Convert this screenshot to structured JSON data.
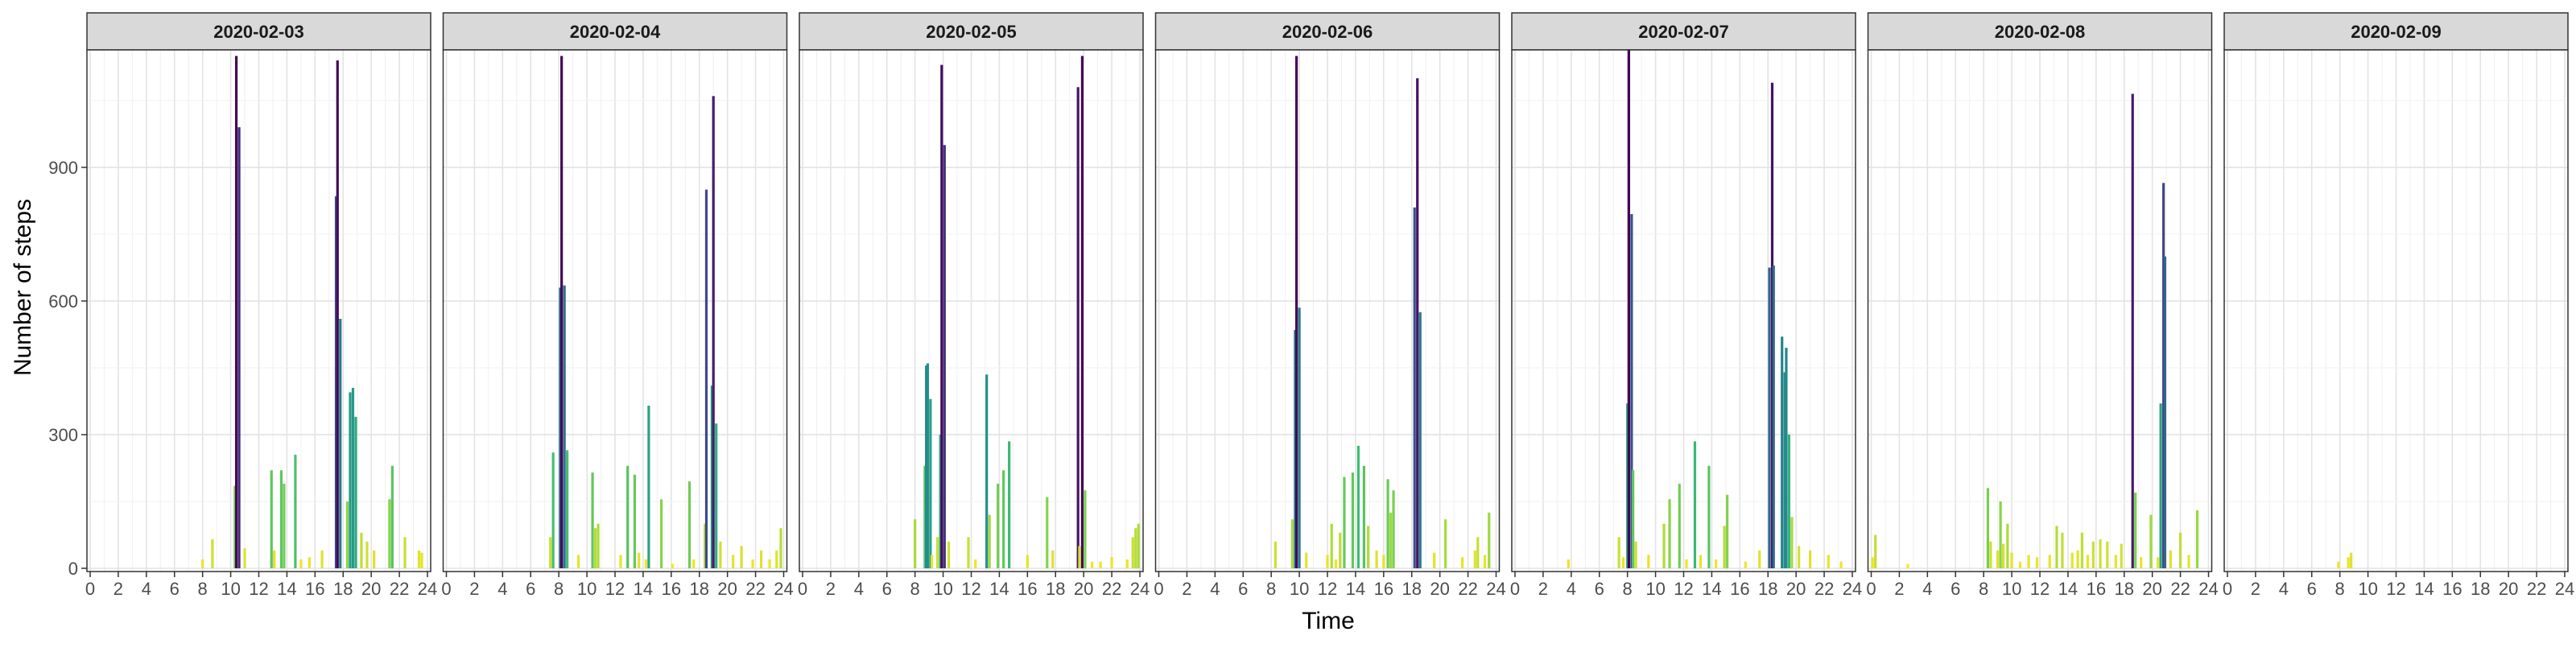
{
  "chart_data": {
    "type": "bar",
    "xlabel": "Time",
    "ylabel": "Number of steps",
    "xlim": [
      0,
      24
    ],
    "ylim": [
      0,
      1160
    ],
    "x_ticks": [
      "0",
      "2",
      "4",
      "6",
      "8",
      "10",
      "12",
      "14",
      "16",
      "18",
      "20",
      "22",
      "24"
    ],
    "y_ticks": [
      0,
      300,
      600,
      900
    ],
    "grid": true,
    "color_scale": "viridis (steps: low = yellow, high = dark purple)",
    "facets": [
      {
        "label": "2020-02-03",
        "bars": [
          {
            "x": 8.0,
            "y": 20
          },
          {
            "x": 8.7,
            "y": 65
          },
          {
            "x": 10.3,
            "y": 185
          },
          {
            "x": 10.4,
            "y": 1150
          },
          {
            "x": 10.6,
            "y": 990
          },
          {
            "x": 11.0,
            "y": 45
          },
          {
            "x": 12.9,
            "y": 220
          },
          {
            "x": 13.1,
            "y": 40
          },
          {
            "x": 13.6,
            "y": 220
          },
          {
            "x": 13.8,
            "y": 190
          },
          {
            "x": 14.6,
            "y": 255
          },
          {
            "x": 15.0,
            "y": 20
          },
          {
            "x": 15.6,
            "y": 25
          },
          {
            "x": 16.5,
            "y": 40
          },
          {
            "x": 17.5,
            "y": 835
          },
          {
            "x": 17.6,
            "y": 1140
          },
          {
            "x": 17.8,
            "y": 560
          },
          {
            "x": 18.3,
            "y": 150
          },
          {
            "x": 18.5,
            "y": 395
          },
          {
            "x": 18.7,
            "y": 405
          },
          {
            "x": 18.9,
            "y": 340
          },
          {
            "x": 19.3,
            "y": 80
          },
          {
            "x": 19.7,
            "y": 60
          },
          {
            "x": 20.2,
            "y": 40
          },
          {
            "x": 21.3,
            "y": 155
          },
          {
            "x": 21.5,
            "y": 230
          },
          {
            "x": 22.4,
            "y": 70
          },
          {
            "x": 23.4,
            "y": 40
          },
          {
            "x": 23.6,
            "y": 35
          }
        ]
      },
      {
        "label": "2020-02-04",
        "bars": [
          {
            "x": 7.4,
            "y": 70
          },
          {
            "x": 7.6,
            "y": 260
          },
          {
            "x": 8.1,
            "y": 630
          },
          {
            "x": 8.2,
            "y": 1150
          },
          {
            "x": 8.4,
            "y": 635
          },
          {
            "x": 8.6,
            "y": 265
          },
          {
            "x": 9.4,
            "y": 30
          },
          {
            "x": 10.4,
            "y": 215
          },
          {
            "x": 10.6,
            "y": 90
          },
          {
            "x": 10.8,
            "y": 100
          },
          {
            "x": 12.4,
            "y": 30
          },
          {
            "x": 12.9,
            "y": 230
          },
          {
            "x": 13.4,
            "y": 210
          },
          {
            "x": 13.7,
            "y": 35
          },
          {
            "x": 14.2,
            "y": 20
          },
          {
            "x": 14.4,
            "y": 365
          },
          {
            "x": 15.3,
            "y": 155
          },
          {
            "x": 16.1,
            "y": 10
          },
          {
            "x": 17.3,
            "y": 195
          },
          {
            "x": 17.6,
            "y": 20
          },
          {
            "x": 18.4,
            "y": 100
          },
          {
            "x": 18.5,
            "y": 850
          },
          {
            "x": 18.9,
            "y": 410
          },
          {
            "x": 19.0,
            "y": 1060
          },
          {
            "x": 19.2,
            "y": 325
          },
          {
            "x": 19.5,
            "y": 60
          },
          {
            "x": 20.4,
            "y": 30
          },
          {
            "x": 21.0,
            "y": 50
          },
          {
            "x": 21.8,
            "y": 20
          },
          {
            "x": 22.4,
            "y": 40
          },
          {
            "x": 23.0,
            "y": 20
          },
          {
            "x": 23.5,
            "y": 40
          },
          {
            "x": 23.8,
            "y": 90
          }
        ]
      },
      {
        "label": "2020-02-05",
        "bars": [
          {
            "x": 8.0,
            "y": 110
          },
          {
            "x": 8.7,
            "y": 230
          },
          {
            "x": 8.8,
            "y": 455
          },
          {
            "x": 8.9,
            "y": 460
          },
          {
            "x": 9.1,
            "y": 380
          },
          {
            "x": 9.2,
            "y": 30
          },
          {
            "x": 9.6,
            "y": 70
          },
          {
            "x": 9.8,
            "y": 300
          },
          {
            "x": 9.9,
            "y": 1130
          },
          {
            "x": 10.1,
            "y": 950
          },
          {
            "x": 10.4,
            "y": 60
          },
          {
            "x": 11.8,
            "y": 70
          },
          {
            "x": 12.3,
            "y": 20
          },
          {
            "x": 13.1,
            "y": 435
          },
          {
            "x": 13.3,
            "y": 120
          },
          {
            "x": 13.9,
            "y": 190
          },
          {
            "x": 14.3,
            "y": 220
          },
          {
            "x": 14.7,
            "y": 285
          },
          {
            "x": 16.0,
            "y": 30
          },
          {
            "x": 17.4,
            "y": 160
          },
          {
            "x": 17.8,
            "y": 40
          },
          {
            "x": 19.6,
            "y": 1080
          },
          {
            "x": 19.7,
            "y": 50
          },
          {
            "x": 19.9,
            "y": 1150
          },
          {
            "x": 20.1,
            "y": 175
          },
          {
            "x": 20.6,
            "y": 15
          },
          {
            "x": 21.2,
            "y": 15
          },
          {
            "x": 22.0,
            "y": 25
          },
          {
            "x": 23.1,
            "y": 20
          },
          {
            "x": 23.5,
            "y": 70
          },
          {
            "x": 23.7,
            "y": 90
          },
          {
            "x": 23.9,
            "y": 100
          }
        ]
      },
      {
        "label": "2020-02-06",
        "bars": [
          {
            "x": 8.3,
            "y": 60
          },
          {
            "x": 9.5,
            "y": 110
          },
          {
            "x": 9.7,
            "y": 535
          },
          {
            "x": 9.8,
            "y": 1150
          },
          {
            "x": 10.0,
            "y": 585
          },
          {
            "x": 10.5,
            "y": 35
          },
          {
            "x": 12.0,
            "y": 30
          },
          {
            "x": 12.3,
            "y": 100
          },
          {
            "x": 12.6,
            "y": 20
          },
          {
            "x": 12.9,
            "y": 80
          },
          {
            "x": 13.2,
            "y": 205
          },
          {
            "x": 13.8,
            "y": 215
          },
          {
            "x": 14.2,
            "y": 275
          },
          {
            "x": 14.6,
            "y": 230
          },
          {
            "x": 14.9,
            "y": 95
          },
          {
            "x": 15.5,
            "y": 40
          },
          {
            "x": 16.0,
            "y": 30
          },
          {
            "x": 16.3,
            "y": 200
          },
          {
            "x": 16.5,
            "y": 125
          },
          {
            "x": 16.7,
            "y": 175
          },
          {
            "x": 18.2,
            "y": 810
          },
          {
            "x": 18.4,
            "y": 1100
          },
          {
            "x": 18.6,
            "y": 575
          },
          {
            "x": 19.6,
            "y": 35
          },
          {
            "x": 20.4,
            "y": 110
          },
          {
            "x": 21.6,
            "y": 25
          },
          {
            "x": 22.5,
            "y": 40
          },
          {
            "x": 22.7,
            "y": 70
          },
          {
            "x": 23.2,
            "y": 30
          },
          {
            "x": 23.5,
            "y": 125
          }
        ]
      },
      {
        "label": "2020-02-07",
        "bars": [
          {
            "x": 3.8,
            "y": 20
          },
          {
            "x": 7.4,
            "y": 70
          },
          {
            "x": 7.7,
            "y": 25
          },
          {
            "x": 8.0,
            "y": 370
          },
          {
            "x": 8.1,
            "y": 1165
          },
          {
            "x": 8.3,
            "y": 795
          },
          {
            "x": 8.4,
            "y": 220
          },
          {
            "x": 8.6,
            "y": 60
          },
          {
            "x": 9.5,
            "y": 30
          },
          {
            "x": 10.6,
            "y": 100
          },
          {
            "x": 11.0,
            "y": 155
          },
          {
            "x": 11.7,
            "y": 190
          },
          {
            "x": 12.2,
            "y": 20
          },
          {
            "x": 12.8,
            "y": 285
          },
          {
            "x": 13.2,
            "y": 30
          },
          {
            "x": 13.8,
            "y": 230
          },
          {
            "x": 14.3,
            "y": 20
          },
          {
            "x": 14.9,
            "y": 95
          },
          {
            "x": 15.1,
            "y": 165
          },
          {
            "x": 16.4,
            "y": 15
          },
          {
            "x": 17.4,
            "y": 40
          },
          {
            "x": 18.1,
            "y": 675
          },
          {
            "x": 18.3,
            "y": 1090
          },
          {
            "x": 18.4,
            "y": 680
          },
          {
            "x": 19.0,
            "y": 520
          },
          {
            "x": 19.2,
            "y": 440
          },
          {
            "x": 19.3,
            "y": 495
          },
          {
            "x": 19.5,
            "y": 300
          },
          {
            "x": 19.7,
            "y": 115
          },
          {
            "x": 20.2,
            "y": 50
          },
          {
            "x": 21.0,
            "y": 40
          },
          {
            "x": 22.3,
            "y": 30
          },
          {
            "x": 23.2,
            "y": 15
          }
        ]
      },
      {
        "label": "2020-02-08",
        "bars": [
          {
            "x": 0.1,
            "y": 25
          },
          {
            "x": 0.3,
            "y": 75
          },
          {
            "x": 2.6,
            "y": 10
          },
          {
            "x": 8.3,
            "y": 180
          },
          {
            "x": 8.5,
            "y": 60
          },
          {
            "x": 9.0,
            "y": 40
          },
          {
            "x": 9.2,
            "y": 150
          },
          {
            "x": 9.4,
            "y": 55
          },
          {
            "x": 9.7,
            "y": 100
          },
          {
            "x": 10.0,
            "y": 35
          },
          {
            "x": 10.6,
            "y": 15
          },
          {
            "x": 11.2,
            "y": 30
          },
          {
            "x": 11.8,
            "y": 25
          },
          {
            "x": 12.7,
            "y": 30
          },
          {
            "x": 13.2,
            "y": 95
          },
          {
            "x": 13.6,
            "y": 80
          },
          {
            "x": 14.3,
            "y": 35
          },
          {
            "x": 14.7,
            "y": 40
          },
          {
            "x": 15.0,
            "y": 80
          },
          {
            "x": 15.4,
            "y": 30
          },
          {
            "x": 15.8,
            "y": 60
          },
          {
            "x": 16.3,
            "y": 65
          },
          {
            "x": 16.8,
            "y": 60
          },
          {
            "x": 17.4,
            "y": 30
          },
          {
            "x": 17.8,
            "y": 55
          },
          {
            "x": 18.6,
            "y": 1065
          },
          {
            "x": 18.8,
            "y": 170
          },
          {
            "x": 19.2,
            "y": 25
          },
          {
            "x": 19.9,
            "y": 120
          },
          {
            "x": 20.4,
            "y": 25
          },
          {
            "x": 20.6,
            "y": 370
          },
          {
            "x": 20.8,
            "y": 865
          },
          {
            "x": 20.9,
            "y": 700
          },
          {
            "x": 21.3,
            "y": 40
          },
          {
            "x": 22.0,
            "y": 80
          },
          {
            "x": 22.6,
            "y": 30
          },
          {
            "x": 23.2,
            "y": 130
          }
        ]
      },
      {
        "label": "2020-02-09",
        "bars": [
          {
            "x": 7.9,
            "y": 15
          },
          {
            "x": 8.6,
            "y": 25
          },
          {
            "x": 8.8,
            "y": 35
          }
        ]
      }
    ]
  }
}
